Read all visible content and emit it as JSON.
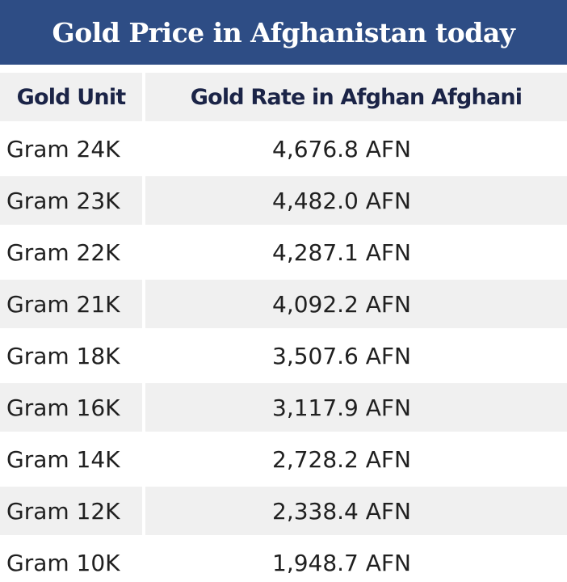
{
  "title": "Gold Price in Afghanistan today",
  "colors": {
    "banner": "#2e4d85",
    "banner_text": "#ffffff",
    "header_text": "#1b2447",
    "row_alt": "#f0f0f0"
  },
  "table": {
    "headers": [
      "Gold Unit",
      "Gold Rate in Afghan Afghani"
    ],
    "rows": [
      {
        "unit": "Gram 24K",
        "rate": "4,676.8 AFN"
      },
      {
        "unit": "Gram 23K",
        "rate": "4,482.0 AFN"
      },
      {
        "unit": "Gram 22K",
        "rate": "4,287.1 AFN"
      },
      {
        "unit": "Gram 21K",
        "rate": "4,092.2 AFN"
      },
      {
        "unit": "Gram 18K",
        "rate": "3,507.6 AFN"
      },
      {
        "unit": "Gram 16K",
        "rate": "3,117.9 AFN"
      },
      {
        "unit": "Gram 14K",
        "rate": "2,728.2 AFN"
      },
      {
        "unit": "Gram 12K",
        "rate": "2,338.4 AFN"
      },
      {
        "unit": "Gram 10K",
        "rate": "1,948.7 AFN"
      }
    ]
  }
}
